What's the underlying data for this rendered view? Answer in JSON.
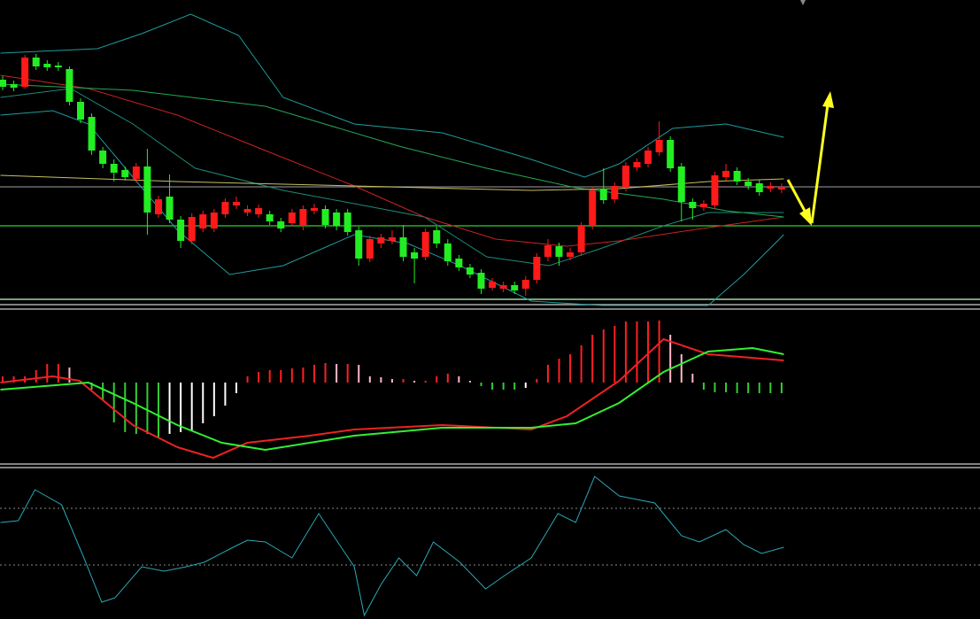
{
  "chart_data": [
    {
      "type": "candlestick",
      "xlim": [
        -0.24,
        87.83
      ],
      "ylim": [
        -8,
        340
      ],
      "up_color": "#ff1a1a",
      "down_color": "#22ee22",
      "open": [
        250,
        245,
        242,
        275,
        268,
        266,
        262,
        225,
        208,
        170,
        155,
        148,
        138,
        152,
        98,
        118,
        92,
        68,
        82,
        82,
        98,
        108,
        100,
        98,
        98,
        90,
        88,
        85,
        102,
        104,
        100,
        100,
        80,
        48,
        65,
        68,
        72,
        55,
        50,
        80,
        65,
        48,
        38,
        32,
        15,
        14,
        18,
        14,
        24,
        50,
        62,
        50,
        55,
        85,
        127,
        115,
        128,
        151,
        155,
        168,
        182,
        152,
        112,
        106,
        108,
        140,
        147,
        135,
        133,
        127,
        126
      ],
      "high": [
        254,
        249,
        278,
        279,
        272,
        270,
        265,
        229,
        212,
        174,
        160,
        152,
        156,
        172,
        119,
        143,
        96,
        99,
        102,
        104,
        116,
        118,
        108,
        109,
        102,
        94,
        104,
        108,
        110,
        108,
        104,
        104,
        84,
        74,
        76,
        80,
        86,
        60,
        82,
        84,
        70,
        52,
        42,
        36,
        26,
        22,
        22,
        28,
        54,
        70,
        66,
        60,
        89,
        129,
        150,
        134,
        157,
        161,
        174,
        203,
        186,
        156,
        116,
        114,
        146,
        155,
        151,
        139,
        137,
        134,
        133
      ],
      "low": [
        238,
        237,
        240,
        261,
        260,
        260,
        221,
        201,
        165,
        150,
        135,
        136,
        134,
        75,
        94,
        88,
        60,
        64,
        78,
        78,
        94,
        104,
        96,
        94,
        86,
        78,
        84,
        80,
        98,
        82,
        80,
        74,
        40,
        44,
        60,
        64,
        45,
        20,
        46,
        60,
        40,
        34,
        26,
        8,
        12,
        10,
        8,
        6,
        20,
        45,
        40,
        46,
        51,
        81,
        110,
        111,
        124,
        147,
        151,
        164,
        146,
        90,
        92,
        102,
        104,
        136,
        131,
        126,
        119,
        123,
        122
      ],
      "close": [
        242,
        241,
        275,
        265,
        264,
        264,
        225,
        205,
        170,
        155,
        145,
        140,
        152,
        100,
        115,
        92,
        68,
        95,
        98,
        100,
        112,
        112,
        104,
        105,
        90,
        82,
        100,
        104,
        105,
        86,
        85,
        78,
        48,
        70,
        72,
        72,
        50,
        48,
        78,
        65,
        45,
        38,
        30,
        14,
        22,
        18,
        12,
        24,
        50,
        63,
        50,
        55,
        85,
        125,
        114,
        130,
        153,
        157,
        170,
        182,
        150,
        112,
        105,
        110,
        142,
        147,
        135,
        130,
        123,
        130,
        129
      ],
      "lines": [
        {
          "color": "#1f9c9c",
          "x": [
            -0.2,
            8.5,
            12.5,
            16.9,
            21.2,
            25.2,
            31.6,
            39.5,
            47.5,
            52.3,
            55.4,
            60.2,
            65.0,
            70.2
          ],
          "values": [
            280,
            285,
            302,
            324,
            300,
            230,
            200,
            190,
            160,
            140,
            155,
            195,
            200,
            185
          ]
        },
        {
          "color": "#1f9c9c",
          "x": [
            -0.2,
            4.5,
            7.7,
            11.7,
            15.7,
            20.4,
            25.2,
            31.6,
            36.4,
            41.1,
            47.5,
            53.9,
            63.4,
            66.6,
            70.2
          ],
          "values": [
            210,
            215,
            200,
            140,
            80,
            30,
            40,
            75,
            65,
            40,
            0,
            -5,
            -5,
            30,
            75
          ]
        },
        {
          "color": "#1e8a7a",
          "x": [
            -0.2,
            6.1,
            11.7,
            17.3,
            25.2,
            31.6,
            37.9,
            43.5,
            49.1,
            53.9,
            59.4,
            63.4,
            70.2
          ],
          "values": [
            230,
            240,
            200,
            150,
            125,
            110,
            95,
            50,
            40,
            60,
            85,
            100,
            100
          ]
        },
        {
          "color": "#cc2222",
          "x": [
            -0.2,
            7.7,
            15.7,
            23.6,
            31.6,
            37.9,
            44.3,
            50.7,
            55.4,
            61.8,
            70.2
          ],
          "values": [
            255,
            240,
            210,
            170,
            130,
            95,
            70,
            62,
            68,
            80,
            95
          ]
        },
        {
          "color": "#22aa55",
          "x": [
            -0.2,
            11.7,
            23.6,
            35.6,
            43.5,
            51.5,
            59.4,
            65.0,
            70.2
          ],
          "values": [
            245,
            238,
            220,
            175,
            150,
            128,
            115,
            102,
            95
          ]
        },
        {
          "color": "#c8c060",
          "x": [
            -0.2,
            15.7,
            31.6,
            47.5,
            55.4,
            63.4,
            70.2
          ],
          "values": [
            142,
            135,
            130,
            125,
            127,
            135,
            138
          ]
        }
      ],
      "hlines": [
        {
          "value": 129,
          "color": "#808080"
        },
        {
          "value": 85,
          "color": "#33cc33"
        }
      ]
    },
    {
      "type": "macd",
      "xlim": [
        -0.24,
        87.83
      ],
      "ylim": [
        -93,
        82
      ],
      "up_color": "#ff2020",
      "up_fade_color": "#ffb6c8",
      "down_color": "#33cc33",
      "down_fade_color": "#ffffff",
      "values": [
        7,
        7,
        7,
        14,
        21,
        21,
        17,
        2,
        -8,
        -20,
        -45,
        -56,
        -58,
        -58,
        -63,
        -58,
        -56,
        -54,
        -46,
        -38,
        -26,
        -12,
        7,
        12,
        14,
        14,
        16,
        17,
        20,
        22,
        21,
        21,
        20,
        7,
        6,
        4,
        4,
        2,
        2,
        7,
        10,
        7,
        2,
        -4,
        -8,
        -8,
        -8,
        -6,
        4,
        20,
        27,
        32,
        42,
        54,
        60,
        64,
        69,
        69,
        69,
        70,
        54,
        32,
        10,
        -8,
        -11,
        -11,
        -12,
        -12,
        -12,
        -12,
        -12
      ],
      "lines": [
        {
          "color": "#ee2222",
          "x": [
            -0.2,
            4.5,
            6.9,
            11.7,
            15.7,
            18.9,
            22.0,
            27.6,
            31.6,
            39.5,
            47.5,
            50.7,
            55.4,
            59.4,
            63.4,
            70.2
          ],
          "values": [
            0,
            7,
            2,
            -48,
            -73,
            -85,
            -68,
            -60,
            -53,
            -48,
            -53,
            -38,
            2,
            49,
            32,
            25
          ]
        },
        {
          "color": "#33ee33",
          "x": [
            -0.2,
            7.7,
            11.7,
            15.7,
            19.7,
            23.6,
            31.6,
            39.5,
            47.5,
            51.5,
            55.4,
            59.4,
            63.4,
            67.4,
            70.2
          ],
          "values": [
            -8,
            0,
            -23,
            -48,
            -68,
            -76,
            -60,
            -51,
            -51,
            -46,
            -23,
            12,
            35,
            39,
            32
          ]
        }
      ]
    },
    {
      "type": "line",
      "xlim": [
        -0.24,
        87.83
      ],
      "ylim": [
        0,
        169
      ],
      "lines": [
        {
          "color": "#2aa8b8",
          "x": [
            -0.2,
            1.4,
            2.9,
            5.3,
            7.3,
            8.9,
            10.1,
            12.5,
            14.5,
            16.5,
            18.1,
            20.4,
            22.0,
            23.6,
            26.0,
            28.4,
            30.0,
            31.6,
            32.5,
            34.0,
            35.6,
            37.2,
            38.7,
            41.1,
            43.4,
            45.1,
            47.5,
            49.9,
            51.5,
            53.2,
            55.4,
            58.6,
            61.0,
            62.6,
            65.0,
            66.6,
            68.2,
            70.2
          ],
          "values": [
            109,
            111,
            146,
            129,
            69,
            19,
            24,
            59,
            54,
            59,
            64,
            79,
            89,
            87,
            69,
            119,
            89,
            59,
            4,
            39,
            69,
            49,
            87,
            64,
            34,
            49,
            69,
            119,
            109,
            161,
            139,
            131,
            94,
            87,
            101,
            84,
            74,
            81
          ]
        }
      ],
      "dashed_levels": [
        {
          "value": 125,
          "color": "#888888"
        },
        {
          "value": 61,
          "color": "#888888"
        }
      ]
    }
  ]
}
